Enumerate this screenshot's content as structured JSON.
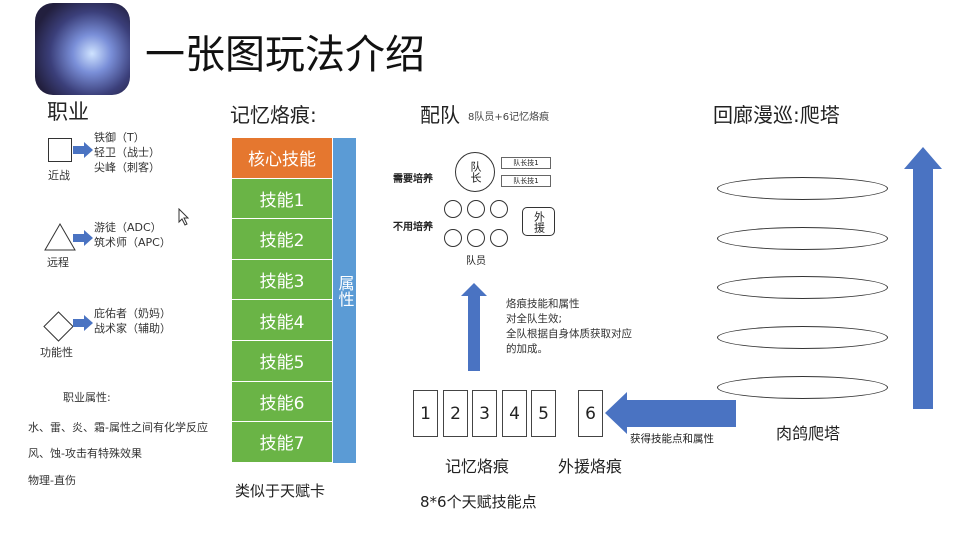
{
  "title": "一张图玩法介绍",
  "roles": {
    "heading": "职业",
    "melee": {
      "label": "近战",
      "items": [
        "铁御（T）",
        "轻卫（战士）",
        "尖峰（刺客）"
      ]
    },
    "ranged": {
      "label": "远程",
      "items": [
        "游徒（ADC）",
        "筑术师（APC）"
      ]
    },
    "support": {
      "label": "功能性",
      "items": [
        "庇佑者（奶妈）",
        "战术家（辅助）"
      ]
    },
    "attr_heading": "职业属性:",
    "attr_lines": [
      "水、雷、炎、霜-属性之间有化学反应",
      "风、蚀-攻击有特殊效果",
      "物理-直伤"
    ]
  },
  "memory": {
    "heading": "记忆烙痕:",
    "core": "核心技能",
    "skills": [
      "技能1",
      "技能2",
      "技能3",
      "技能4",
      "技能5",
      "技能6",
      "技能7"
    ],
    "side": "属性",
    "caption": "类似于天赋卡"
  },
  "team": {
    "heading": "配队",
    "sub": "8队员+6记忆烙痕",
    "need_train": "需要培养",
    "no_train": "不用培养",
    "leader": "队长",
    "leader_skills": [
      "队长技1",
      "队长技1"
    ],
    "support": "外援",
    "members": "队员",
    "effect_lines": [
      "烙痕技能和属性",
      "对全队生效;",
      "全队根据自身体质获取对应",
      "的加成。"
    ],
    "cards": [
      "1",
      "2",
      "3",
      "4",
      "5"
    ],
    "support_card": "6",
    "gain": "获得技能点和属性",
    "cards_label": "记忆烙痕",
    "support_label": "外援烙痕",
    "total": "8*6个天赋技能点"
  },
  "tower": {
    "heading": "回廊漫巡:爬塔",
    "caption": "肉鸽爬塔"
  },
  "colors": {
    "orange": "#e5772f",
    "green": "#6ab446",
    "blue": "#4a73c2",
    "side_blue": "#5b9bd5"
  }
}
